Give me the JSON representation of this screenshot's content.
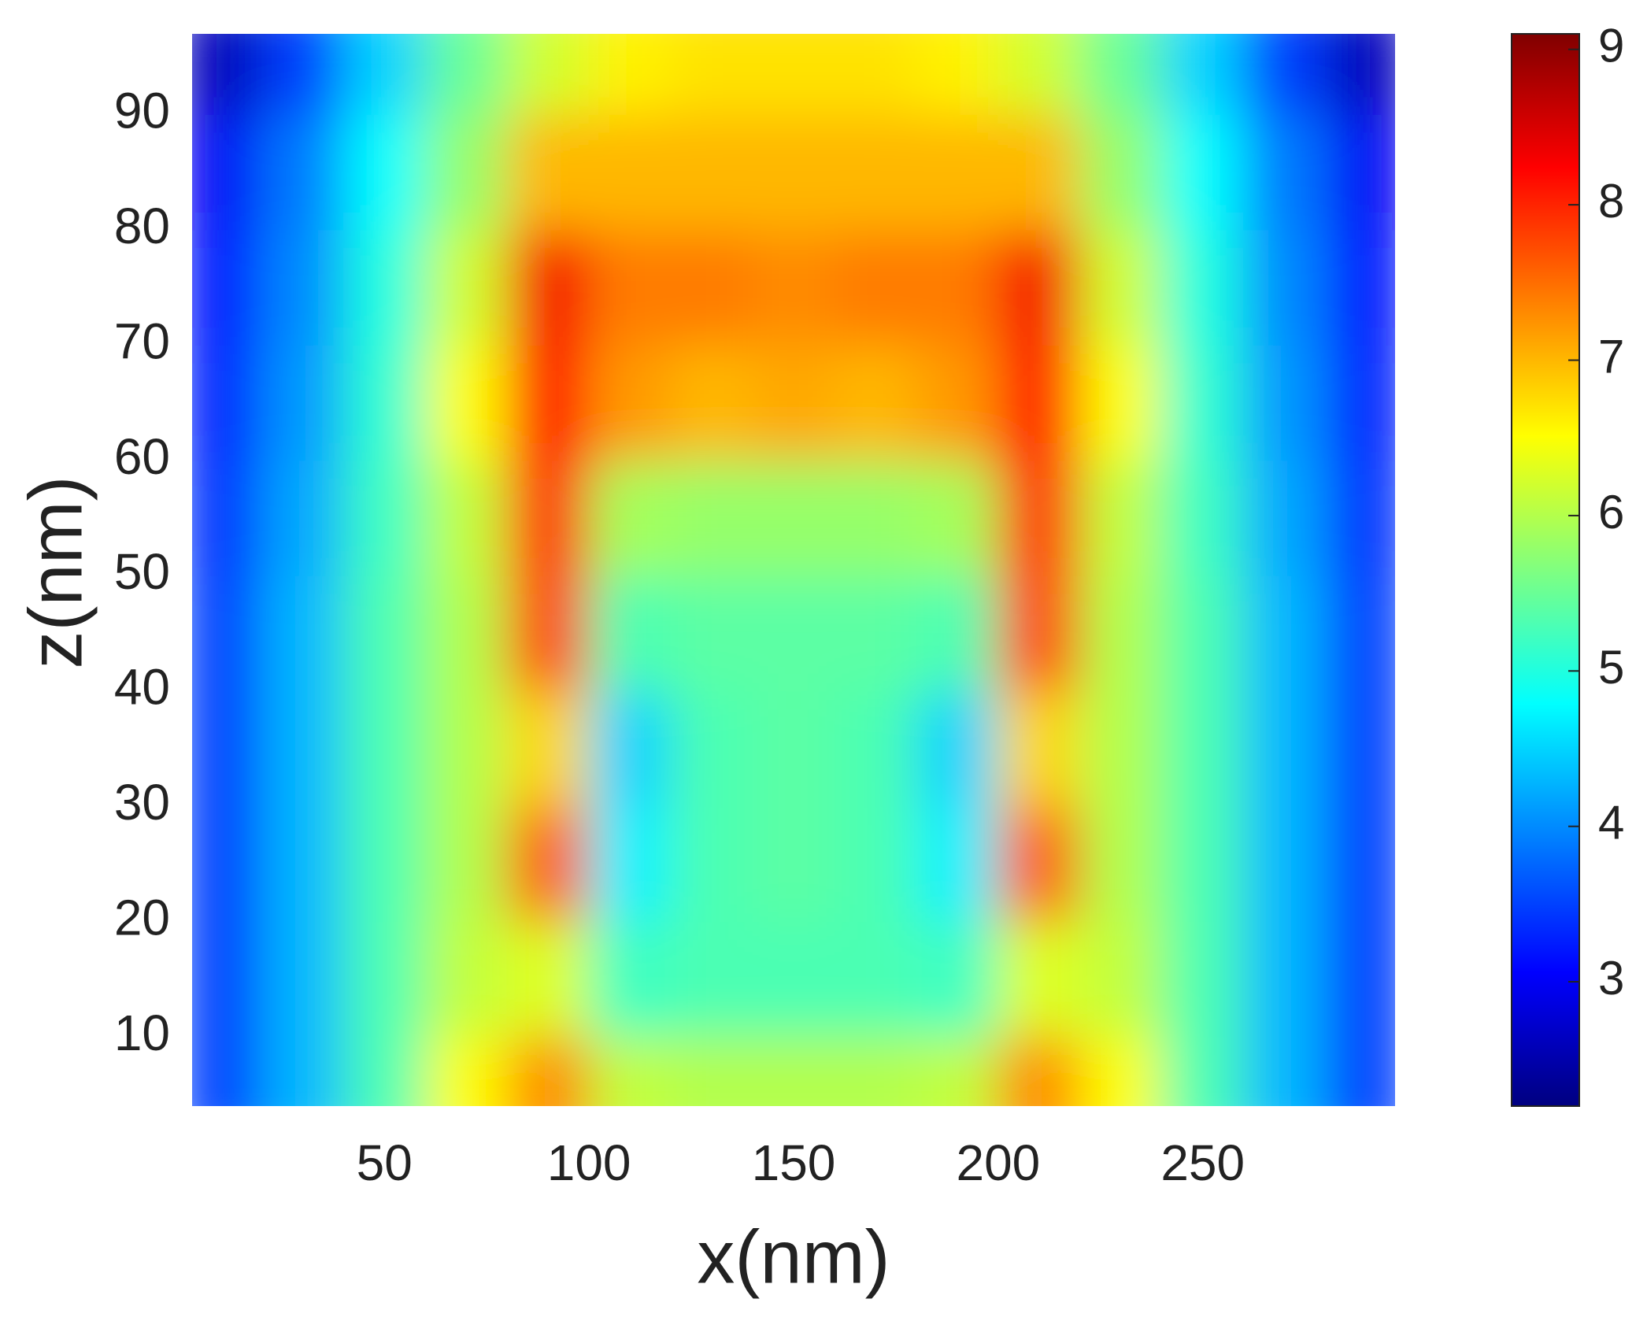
{
  "chart_data": {
    "type": "heatmap",
    "colormap": "jet",
    "xlabel": "x(nm)",
    "ylabel": "z(nm)",
    "x": [
      10,
      30,
      50,
      70,
      90,
      110,
      130,
      150,
      170,
      190,
      210,
      230,
      250,
      270,
      290
    ],
    "y": [
      5,
      15,
      25,
      35,
      45,
      55,
      65,
      75,
      85,
      95
    ],
    "values": [
      [
        3.5,
        4.3,
        5.3,
        6.5,
        7.3,
        6.1,
        6.0,
        6.0,
        6.0,
        6.1,
        7.3,
        6.5,
        5.3,
        4.3,
        3.5
      ],
      [
        3.5,
        4.3,
        5.3,
        6.1,
        6.3,
        5.2,
        5.3,
        5.3,
        5.3,
        5.2,
        6.3,
        6.1,
        5.3,
        4.3,
        3.5
      ],
      [
        3.5,
        4.3,
        5.3,
        6.0,
        7.6,
        4.7,
        5.3,
        5.4,
        5.3,
        4.7,
        7.6,
        6.0,
        5.3,
        4.3,
        3.5
      ],
      [
        3.5,
        4.3,
        5.3,
        6.0,
        6.8,
        4.5,
        5.3,
        5.4,
        5.3,
        4.5,
        6.8,
        6.0,
        5.3,
        4.3,
        3.5
      ],
      [
        3.5,
        4.3,
        5.3,
        6.0,
        7.8,
        5.3,
        5.4,
        5.4,
        5.4,
        5.3,
        7.8,
        6.0,
        5.3,
        4.3,
        3.5
      ],
      [
        3.4,
        4.2,
        5.2,
        6.1,
        8.0,
        5.9,
        5.8,
        5.8,
        5.8,
        5.9,
        8.0,
        6.1,
        5.2,
        4.2,
        3.4
      ],
      [
        3.3,
        4.1,
        5.1,
        6.5,
        8.2,
        7.2,
        7.0,
        7.1,
        7.0,
        7.2,
        8.2,
        6.5,
        5.1,
        4.1,
        3.3
      ],
      [
        3.2,
        4.0,
        5.0,
        6.2,
        8.3,
        7.4,
        7.4,
        7.3,
        7.4,
        7.4,
        8.3,
        6.2,
        5.0,
        4.0,
        3.2
      ],
      [
        3.0,
        3.9,
        4.8,
        5.8,
        7.0,
        7.0,
        7.0,
        7.0,
        7.0,
        7.0,
        7.0,
        5.8,
        4.8,
        3.9,
        3.0
      ],
      [
        2.6,
        3.5,
        4.5,
        5.5,
        6.2,
        6.6,
        6.7,
        6.7,
        6.7,
        6.6,
        6.2,
        5.5,
        4.5,
        3.5,
        2.6
      ]
    ],
    "xlim": [
      3,
      297
    ],
    "ylim": [
      4,
      97
    ],
    "xticks": [
      50,
      100,
      150,
      200,
      250
    ],
    "yticks": [
      10,
      20,
      30,
      40,
      50,
      60,
      70,
      80,
      90
    ],
    "clim": [
      2.2,
      9.1
    ],
    "cticks": [
      3,
      4,
      5,
      6,
      7,
      8,
      9
    ]
  }
}
